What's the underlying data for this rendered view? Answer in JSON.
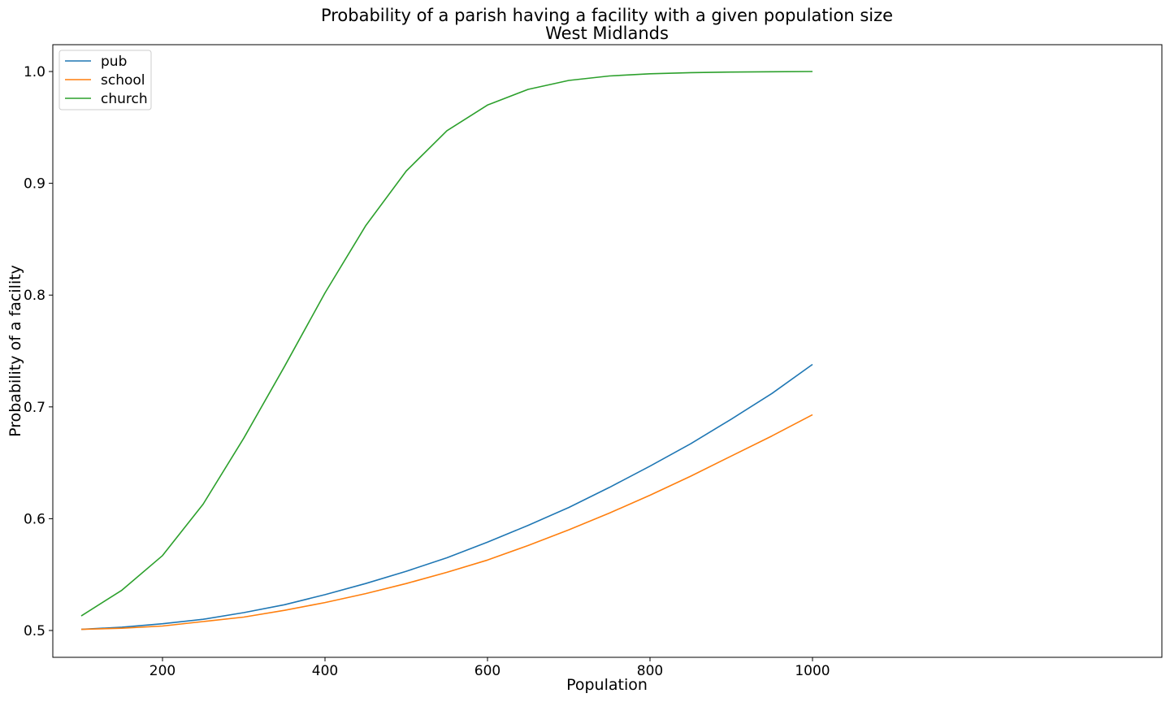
{
  "chart_data": {
    "type": "line",
    "title": "Probability of a parish having a facility with a given population size",
    "subtitle": "West Midlands",
    "xlabel": "Population",
    "ylabel": "Probability of a facility",
    "xlim": [
      65,
      1430
    ],
    "ylim": [
      0.476,
      1.024
    ],
    "xticks": [
      200,
      400,
      600,
      800,
      1000
    ],
    "yticks": [
      0.5,
      0.6,
      0.7,
      0.8,
      0.9,
      1.0
    ],
    "xtick_labels": [
      "200",
      "400",
      "600",
      "800",
      "1000"
    ],
    "ytick_labels": [
      "0.5",
      "0.6",
      "0.7",
      "0.8",
      "0.9",
      "1.0"
    ],
    "grid": false,
    "legend_position": "top-left",
    "series": [
      {
        "name": "pub",
        "color": "#1f77b4",
        "x": [
          100,
          150,
          200,
          250,
          300,
          350,
          400,
          450,
          500,
          550,
          600,
          650,
          700,
          750,
          800,
          850,
          900,
          950,
          1000
        ],
        "y": [
          0.501,
          0.503,
          0.506,
          0.51,
          0.516,
          0.523,
          0.532,
          0.542,
          0.553,
          0.565,
          0.579,
          0.594,
          0.61,
          0.628,
          0.647,
          0.667,
          0.689,
          0.712,
          0.738
        ]
      },
      {
        "name": "school",
        "color": "#ff7f0e",
        "x": [
          100,
          150,
          200,
          250,
          300,
          350,
          400,
          450,
          500,
          550,
          600,
          650,
          700,
          750,
          800,
          850,
          900,
          950,
          1000
        ],
        "y": [
          0.501,
          0.502,
          0.504,
          0.508,
          0.512,
          0.518,
          0.525,
          0.533,
          0.542,
          0.552,
          0.563,
          0.576,
          0.59,
          0.605,
          0.621,
          0.638,
          0.656,
          0.674,
          0.693
        ]
      },
      {
        "name": "church",
        "color": "#2ca02c",
        "x": [
          100,
          150,
          200,
          250,
          300,
          350,
          400,
          450,
          500,
          550,
          600,
          650,
          700,
          750,
          800,
          850,
          900,
          950,
          1000
        ],
        "y": [
          0.513,
          0.536,
          0.567,
          0.613,
          0.672,
          0.736,
          0.802,
          0.862,
          0.911,
          0.947,
          0.97,
          0.984,
          0.992,
          0.996,
          0.998,
          0.999,
          0.9995,
          0.9998,
          1.0
        ]
      }
    ]
  }
}
